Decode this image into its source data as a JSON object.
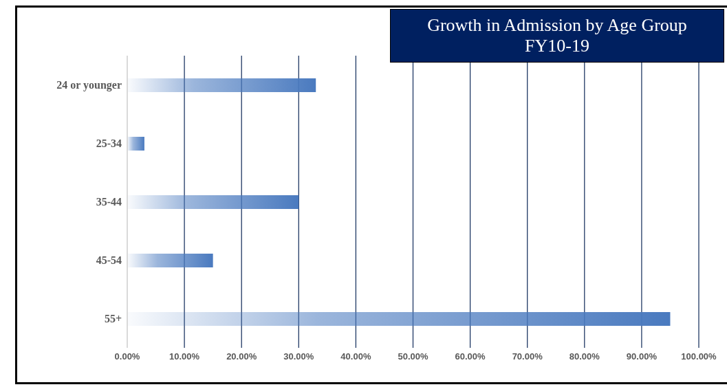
{
  "chart_data": {
    "type": "bar",
    "orientation": "horizontal",
    "title": "Growth in Admission by Age Group\nFY10-19",
    "categories": [
      "24 or younger",
      "25-34",
      "35-44",
      "45-54",
      "55+"
    ],
    "values": [
      33,
      3,
      30,
      15,
      95
    ],
    "color": "#4a7abf",
    "xlim": [
      0,
      100
    ],
    "xticks": [
      {
        "value": 0,
        "label": "0.00%"
      },
      {
        "value": 10,
        "label": "10.00%"
      },
      {
        "value": 20,
        "label": "20.00%"
      },
      {
        "value": 30,
        "label": "30.00%"
      },
      {
        "value": 40,
        "label": "40.00%"
      },
      {
        "value": 50,
        "label": "50.00%"
      },
      {
        "value": 60,
        "label": "60.00%"
      },
      {
        "value": 70,
        "label": "70.00%"
      },
      {
        "value": 80,
        "label": "80.00%"
      },
      {
        "value": 90,
        "label": "90.00%"
      },
      {
        "value": 100,
        "label": "100.00%"
      }
    ],
    "grid": "x",
    "legend": false
  }
}
